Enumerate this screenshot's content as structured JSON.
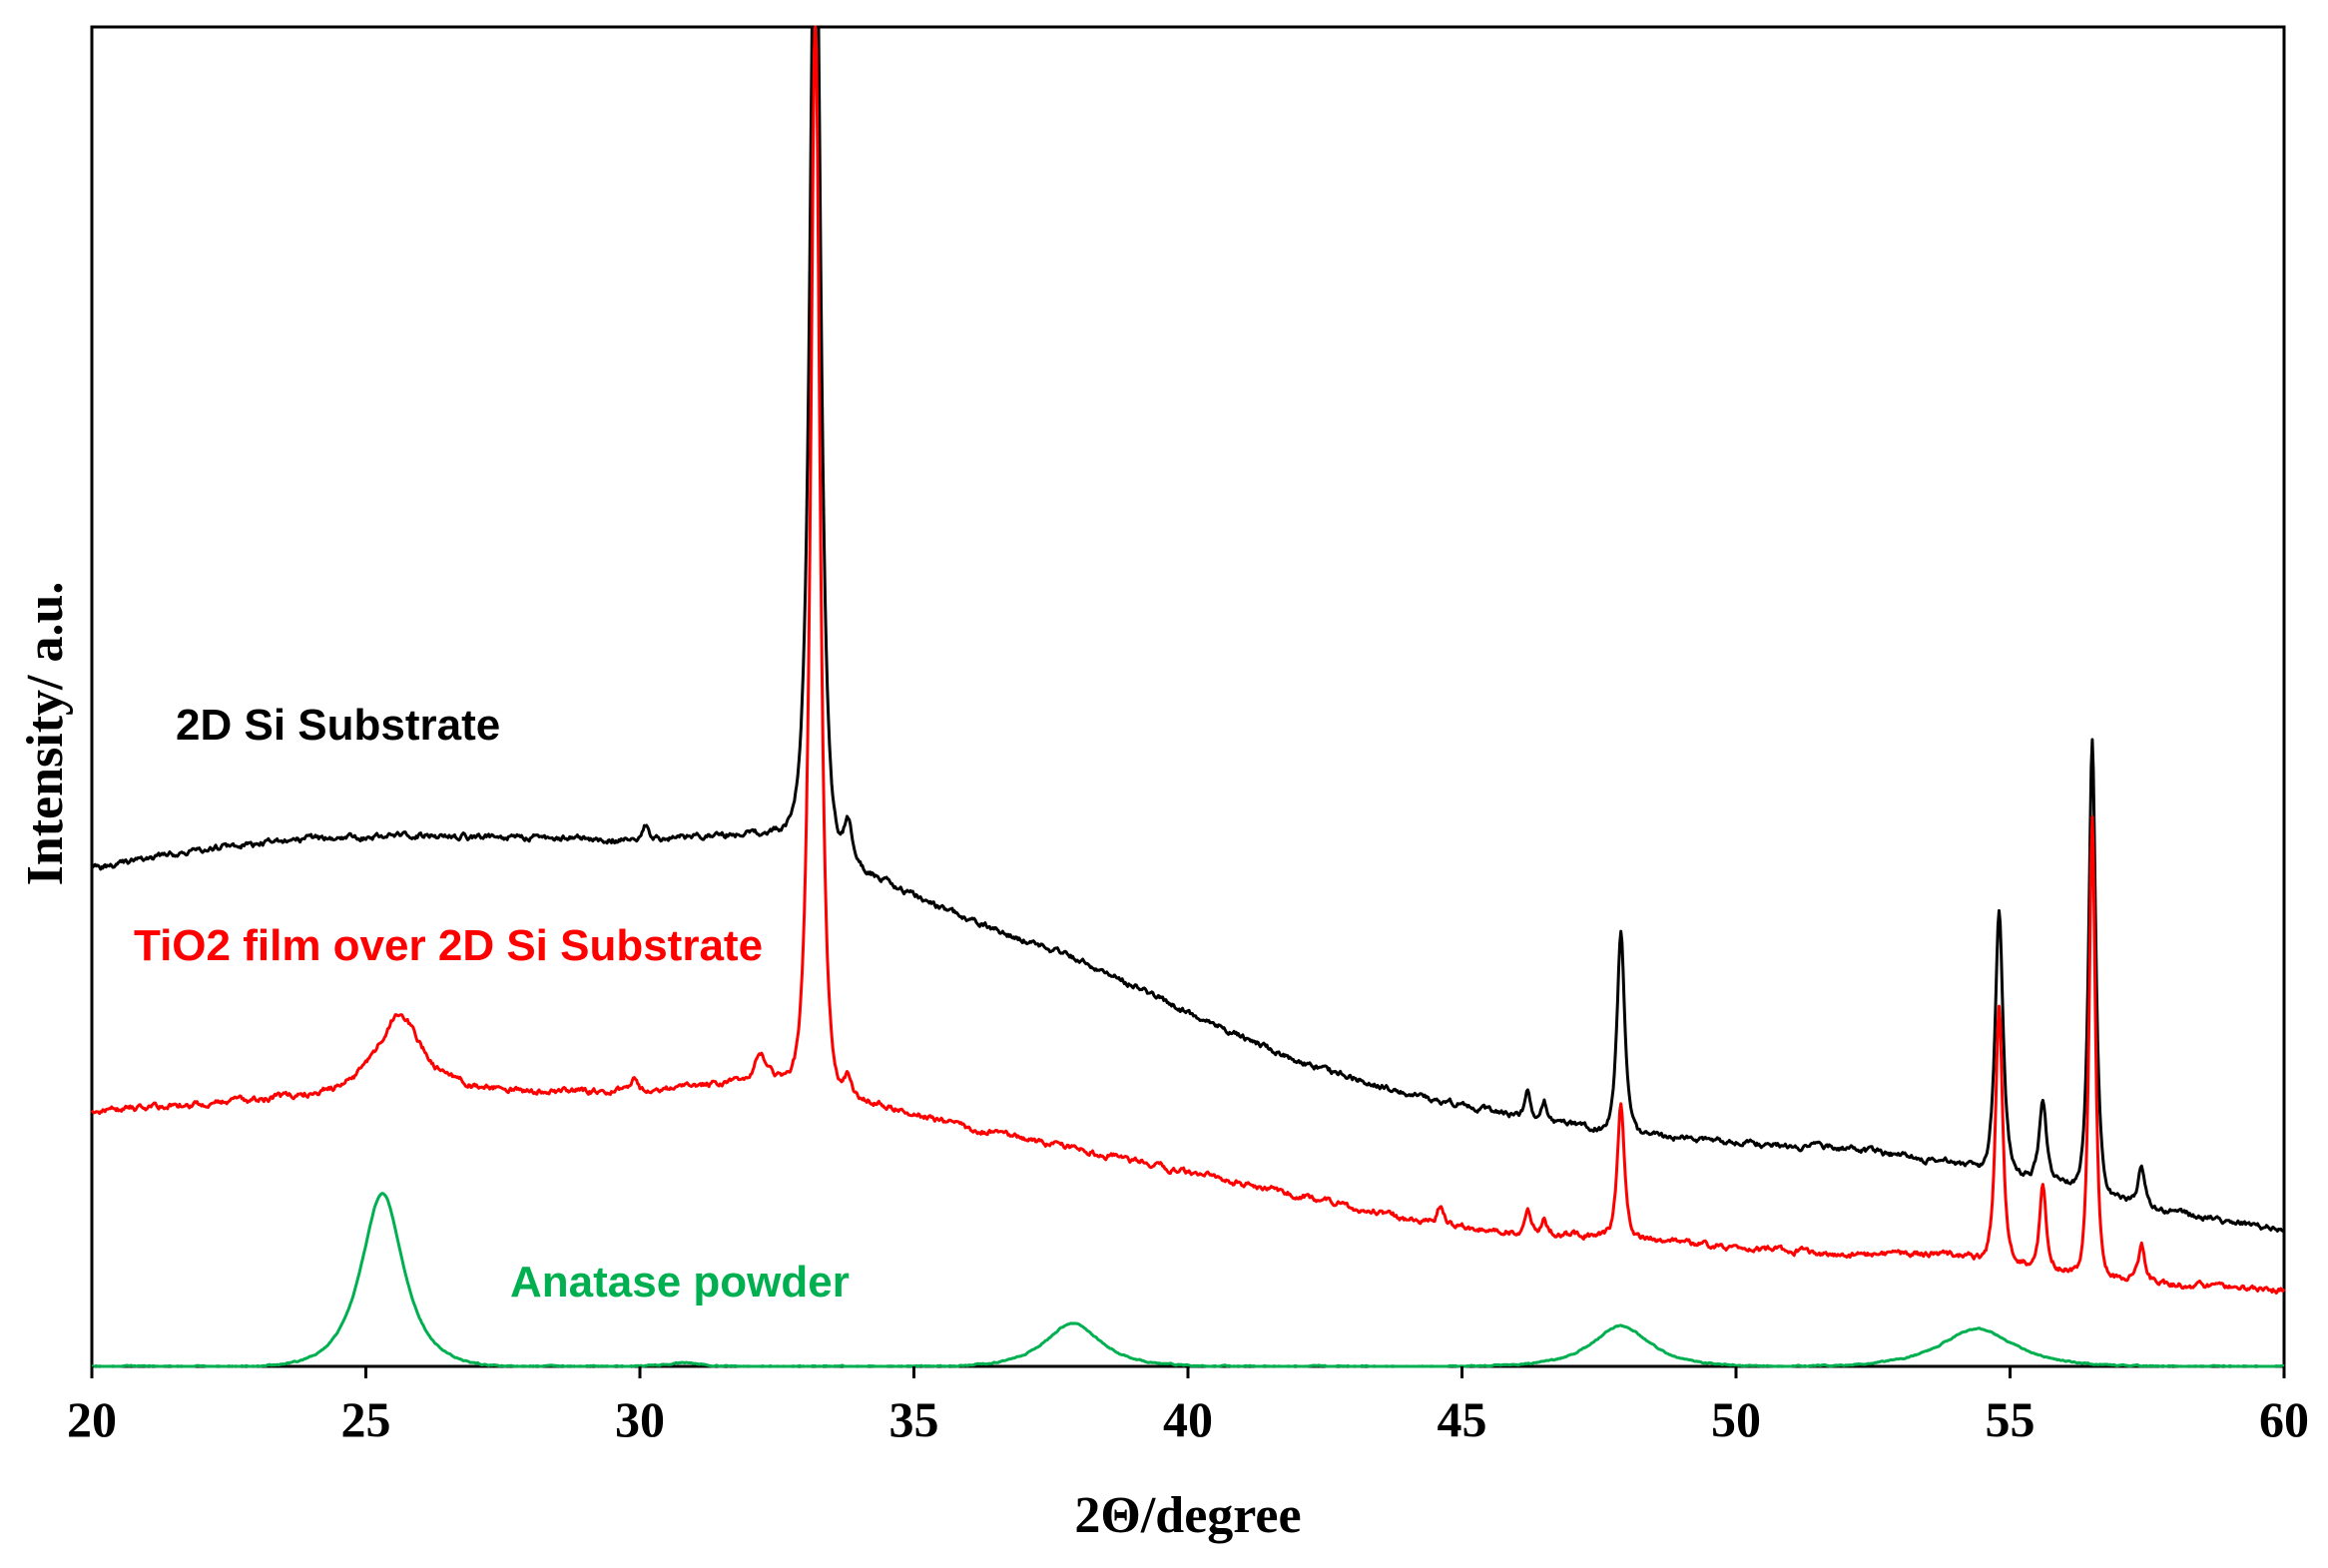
{
  "chart_data": {
    "type": "line",
    "xlabel": "2Θ/degree",
    "ylabel": "Intensity/ a.u.",
    "xlim": [
      20,
      60
    ],
    "ylim": [
      0,
      100
    ],
    "x_ticks": [
      20,
      25,
      30,
      35,
      40,
      45,
      50,
      55,
      60
    ],
    "grid": false,
    "legend": "none",
    "annotations": [
      {
        "text": "2D Si Substrate",
        "color": "#000000"
      },
      {
        "text": "TiO2 film over 2D Si Substrate",
        "color": "#ff0000"
      },
      {
        "text": "Anatase powder",
        "color": "#00b050"
      }
    ],
    "series": [
      {
        "color": "#000000",
        "baseline": [
          [
            20,
            37.1
          ],
          [
            22,
            38.6
          ],
          [
            24,
            39.4
          ],
          [
            26,
            39.6
          ],
          [
            28,
            39.5
          ],
          [
            30,
            39.3
          ],
          [
            32,
            39.8
          ],
          [
            33,
            40.3
          ],
          [
            34,
            37.2
          ],
          [
            36,
            33.3
          ],
          [
            38,
            30.4
          ],
          [
            40,
            26.4
          ],
          [
            42,
            22.8
          ],
          [
            44,
            20.3
          ],
          [
            46,
            18.7
          ],
          [
            48,
            17.4
          ],
          [
            50,
            16.7
          ],
          [
            52,
            16.3
          ],
          [
            54,
            15.2
          ],
          [
            56,
            13.8
          ],
          [
            58,
            11.5
          ],
          [
            60,
            10.2
          ]
        ],
        "peaks": [
          {
            "x": 33.2,
            "height": 80,
            "width": 0.13
          },
          {
            "x": 33.8,
            "height": 3.0,
            "width": 0.12
          },
          {
            "x": 30.1,
            "height": 1.2,
            "width": 0.08
          },
          {
            "x": 46.2,
            "height": 2.0,
            "width": 0.07
          },
          {
            "x": 46.5,
            "height": 1.5,
            "width": 0.07
          },
          {
            "x": 47.9,
            "height": 15.0,
            "width": 0.1
          },
          {
            "x": 54.8,
            "height": 19.5,
            "width": 0.1
          },
          {
            "x": 55.6,
            "height": 6.0,
            "width": 0.09
          },
          {
            "x": 56.5,
            "height": 33.7,
            "width": 0.09
          },
          {
            "x": 57.4,
            "height": 2.8,
            "width": 0.08
          }
        ]
      },
      {
        "color": "#ff0000",
        "baseline": [
          [
            20,
            19.1
          ],
          [
            22,
            19.6
          ],
          [
            24,
            20.3
          ],
          [
            26,
            20.9
          ],
          [
            28,
            20.6
          ],
          [
            30,
            20.5
          ],
          [
            32,
            21.4
          ],
          [
            33,
            21.7
          ],
          [
            34,
            20.0
          ],
          [
            36,
            17.8
          ],
          [
            38,
            16.2
          ],
          [
            40,
            14.5
          ],
          [
            42,
            12.8
          ],
          [
            44,
            11.0
          ],
          [
            46,
            10.0
          ],
          [
            48,
            9.7
          ],
          [
            50,
            8.9
          ],
          [
            52,
            8.3
          ],
          [
            54,
            8.4
          ],
          [
            56,
            7.3
          ],
          [
            58,
            6.1
          ],
          [
            60,
            5.7
          ]
        ],
        "peaks": [
          {
            "x": 33.2,
            "height": 80,
            "width": 0.12
          },
          {
            "x": 25.6,
            "height": 5.5,
            "width": 0.55
          },
          {
            "x": 32.2,
            "height": 2.0,
            "width": 0.15
          },
          {
            "x": 29.9,
            "height": 1.0,
            "width": 0.08
          },
          {
            "x": 33.8,
            "height": 1.5,
            "width": 0.1
          },
          {
            "x": 44.6,
            "height": 1.2,
            "width": 0.08
          },
          {
            "x": 46.2,
            "height": 2.1,
            "width": 0.07
          },
          {
            "x": 46.5,
            "height": 1.3,
            "width": 0.07
          },
          {
            "x": 47.9,
            "height": 10.0,
            "width": 0.09
          },
          {
            "x": 54.8,
            "height": 18.9,
            "width": 0.09
          },
          {
            "x": 55.6,
            "height": 6.2,
            "width": 0.08
          },
          {
            "x": 56.5,
            "height": 34.0,
            "width": 0.08
          },
          {
            "x": 57.4,
            "height": 2.6,
            "width": 0.08
          }
        ]
      },
      {
        "color": "#00b050",
        "baseline": [
          [
            20,
            0
          ],
          [
            60,
            0
          ]
        ],
        "peaks": [
          {
            "x": 25.3,
            "height": 12.9,
            "width": 0.55
          },
          {
            "x": 30.8,
            "height": 0.3,
            "width": 0.4
          },
          {
            "x": 37.9,
            "height": 3.2,
            "width": 0.72
          },
          {
            "x": 47.9,
            "height": 3.0,
            "width": 0.75
          },
          {
            "x": 54.4,
            "height": 2.8,
            "width": 0.95
          }
        ]
      }
    ]
  }
}
